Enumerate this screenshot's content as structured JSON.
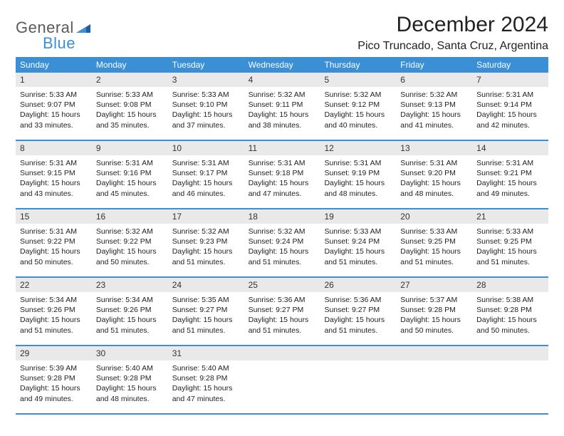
{
  "logo": {
    "text1": "General",
    "text2": "Blue"
  },
  "title": "December 2024",
  "location": "Pico Truncado, Santa Cruz, Argentina",
  "colors": {
    "header_bg": "#3b8fd4",
    "header_text": "#ffffff",
    "daynum_bg": "#e9e9e9",
    "border": "#3b8fd4",
    "text": "#222222",
    "logo_gray": "#5a5a5a",
    "logo_blue": "#3b8fd4"
  },
  "day_headers": [
    "Sunday",
    "Monday",
    "Tuesday",
    "Wednesday",
    "Thursday",
    "Friday",
    "Saturday"
  ],
  "weeks": [
    {
      "nums": [
        "1",
        "2",
        "3",
        "4",
        "5",
        "6",
        "7"
      ],
      "cells": [
        {
          "sunrise": "Sunrise: 5:33 AM",
          "sunset": "Sunset: 9:07 PM",
          "day1": "Daylight: 15 hours",
          "day2": "and 33 minutes."
        },
        {
          "sunrise": "Sunrise: 5:33 AM",
          "sunset": "Sunset: 9:08 PM",
          "day1": "Daylight: 15 hours",
          "day2": "and 35 minutes."
        },
        {
          "sunrise": "Sunrise: 5:33 AM",
          "sunset": "Sunset: 9:10 PM",
          "day1": "Daylight: 15 hours",
          "day2": "and 37 minutes."
        },
        {
          "sunrise": "Sunrise: 5:32 AM",
          "sunset": "Sunset: 9:11 PM",
          "day1": "Daylight: 15 hours",
          "day2": "and 38 minutes."
        },
        {
          "sunrise": "Sunrise: 5:32 AM",
          "sunset": "Sunset: 9:12 PM",
          "day1": "Daylight: 15 hours",
          "day2": "and 40 minutes."
        },
        {
          "sunrise": "Sunrise: 5:32 AM",
          "sunset": "Sunset: 9:13 PM",
          "day1": "Daylight: 15 hours",
          "day2": "and 41 minutes."
        },
        {
          "sunrise": "Sunrise: 5:31 AM",
          "sunset": "Sunset: 9:14 PM",
          "day1": "Daylight: 15 hours",
          "day2": "and 42 minutes."
        }
      ]
    },
    {
      "nums": [
        "8",
        "9",
        "10",
        "11",
        "12",
        "13",
        "14"
      ],
      "cells": [
        {
          "sunrise": "Sunrise: 5:31 AM",
          "sunset": "Sunset: 9:15 PM",
          "day1": "Daylight: 15 hours",
          "day2": "and 43 minutes."
        },
        {
          "sunrise": "Sunrise: 5:31 AM",
          "sunset": "Sunset: 9:16 PM",
          "day1": "Daylight: 15 hours",
          "day2": "and 45 minutes."
        },
        {
          "sunrise": "Sunrise: 5:31 AM",
          "sunset": "Sunset: 9:17 PM",
          "day1": "Daylight: 15 hours",
          "day2": "and 46 minutes."
        },
        {
          "sunrise": "Sunrise: 5:31 AM",
          "sunset": "Sunset: 9:18 PM",
          "day1": "Daylight: 15 hours",
          "day2": "and 47 minutes."
        },
        {
          "sunrise": "Sunrise: 5:31 AM",
          "sunset": "Sunset: 9:19 PM",
          "day1": "Daylight: 15 hours",
          "day2": "and 48 minutes."
        },
        {
          "sunrise": "Sunrise: 5:31 AM",
          "sunset": "Sunset: 9:20 PM",
          "day1": "Daylight: 15 hours",
          "day2": "and 48 minutes."
        },
        {
          "sunrise": "Sunrise: 5:31 AM",
          "sunset": "Sunset: 9:21 PM",
          "day1": "Daylight: 15 hours",
          "day2": "and 49 minutes."
        }
      ]
    },
    {
      "nums": [
        "15",
        "16",
        "17",
        "18",
        "19",
        "20",
        "21"
      ],
      "cells": [
        {
          "sunrise": "Sunrise: 5:31 AM",
          "sunset": "Sunset: 9:22 PM",
          "day1": "Daylight: 15 hours",
          "day2": "and 50 minutes."
        },
        {
          "sunrise": "Sunrise: 5:32 AM",
          "sunset": "Sunset: 9:22 PM",
          "day1": "Daylight: 15 hours",
          "day2": "and 50 minutes."
        },
        {
          "sunrise": "Sunrise: 5:32 AM",
          "sunset": "Sunset: 9:23 PM",
          "day1": "Daylight: 15 hours",
          "day2": "and 51 minutes."
        },
        {
          "sunrise": "Sunrise: 5:32 AM",
          "sunset": "Sunset: 9:24 PM",
          "day1": "Daylight: 15 hours",
          "day2": "and 51 minutes."
        },
        {
          "sunrise": "Sunrise: 5:33 AM",
          "sunset": "Sunset: 9:24 PM",
          "day1": "Daylight: 15 hours",
          "day2": "and 51 minutes."
        },
        {
          "sunrise": "Sunrise: 5:33 AM",
          "sunset": "Sunset: 9:25 PM",
          "day1": "Daylight: 15 hours",
          "day2": "and 51 minutes."
        },
        {
          "sunrise": "Sunrise: 5:33 AM",
          "sunset": "Sunset: 9:25 PM",
          "day1": "Daylight: 15 hours",
          "day2": "and 51 minutes."
        }
      ]
    },
    {
      "nums": [
        "22",
        "23",
        "24",
        "25",
        "26",
        "27",
        "28"
      ],
      "cells": [
        {
          "sunrise": "Sunrise: 5:34 AM",
          "sunset": "Sunset: 9:26 PM",
          "day1": "Daylight: 15 hours",
          "day2": "and 51 minutes."
        },
        {
          "sunrise": "Sunrise: 5:34 AM",
          "sunset": "Sunset: 9:26 PM",
          "day1": "Daylight: 15 hours",
          "day2": "and 51 minutes."
        },
        {
          "sunrise": "Sunrise: 5:35 AM",
          "sunset": "Sunset: 9:27 PM",
          "day1": "Daylight: 15 hours",
          "day2": "and 51 minutes."
        },
        {
          "sunrise": "Sunrise: 5:36 AM",
          "sunset": "Sunset: 9:27 PM",
          "day1": "Daylight: 15 hours",
          "day2": "and 51 minutes."
        },
        {
          "sunrise": "Sunrise: 5:36 AM",
          "sunset": "Sunset: 9:27 PM",
          "day1": "Daylight: 15 hours",
          "day2": "and 51 minutes."
        },
        {
          "sunrise": "Sunrise: 5:37 AM",
          "sunset": "Sunset: 9:28 PM",
          "day1": "Daylight: 15 hours",
          "day2": "and 50 minutes."
        },
        {
          "sunrise": "Sunrise: 5:38 AM",
          "sunset": "Sunset: 9:28 PM",
          "day1": "Daylight: 15 hours",
          "day2": "and 50 minutes."
        }
      ]
    },
    {
      "nums": [
        "29",
        "30",
        "31",
        "",
        "",
        "",
        ""
      ],
      "cells": [
        {
          "sunrise": "Sunrise: 5:39 AM",
          "sunset": "Sunset: 9:28 PM",
          "day1": "Daylight: 15 hours",
          "day2": "and 49 minutes."
        },
        {
          "sunrise": "Sunrise: 5:40 AM",
          "sunset": "Sunset: 9:28 PM",
          "day1": "Daylight: 15 hours",
          "day2": "and 48 minutes."
        },
        {
          "sunrise": "Sunrise: 5:40 AM",
          "sunset": "Sunset: 9:28 PM",
          "day1": "Daylight: 15 hours",
          "day2": "and 47 minutes."
        },
        {
          "sunrise": "",
          "sunset": "",
          "day1": "",
          "day2": ""
        },
        {
          "sunrise": "",
          "sunset": "",
          "day1": "",
          "day2": ""
        },
        {
          "sunrise": "",
          "sunset": "",
          "day1": "",
          "day2": ""
        },
        {
          "sunrise": "",
          "sunset": "",
          "day1": "",
          "day2": ""
        }
      ]
    }
  ]
}
